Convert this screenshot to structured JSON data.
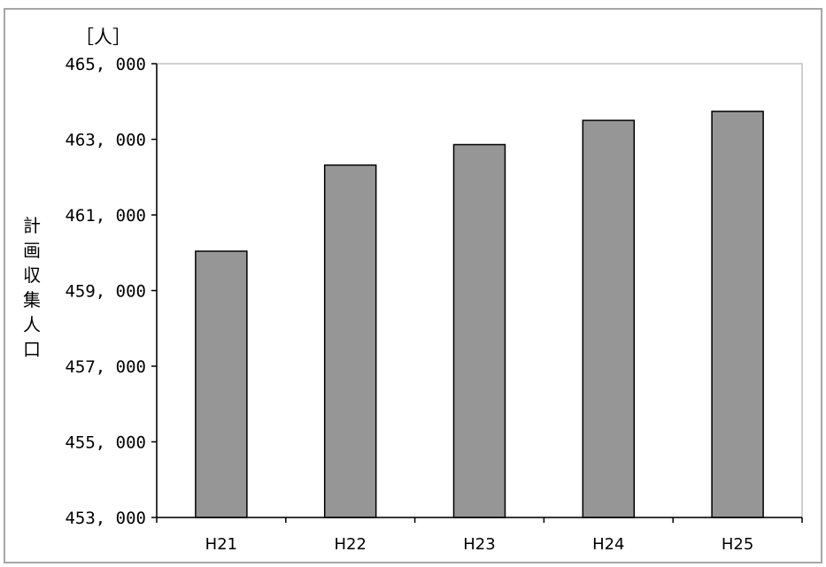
{
  "chart_data": {
    "type": "bar",
    "categories": [
      "H21",
      "H22",
      "H23",
      "H24",
      "H25"
    ],
    "values": [
      460040,
      462320,
      462860,
      463500,
      463740
    ],
    "title": "",
    "xlabel": "",
    "ylabel": "計画収集人口",
    "unit_label": "［人］",
    "ylim": [
      453000,
      465000
    ],
    "yticks": [
      453000,
      455000,
      457000,
      459000,
      461000,
      463000,
      465000
    ],
    "ytick_labels": [
      "453, 000",
      "455, 000",
      "457, 000",
      "459, 000",
      "461, 000",
      "463, 000",
      "465, 000"
    ],
    "grid": false,
    "legend": "none",
    "colors": {
      "bar_fill": "#969696",
      "bar_stroke": "#000000",
      "axis": "#000000",
      "plot_border": "#c0c0c0",
      "frame_border": "#a6a6a6"
    }
  }
}
